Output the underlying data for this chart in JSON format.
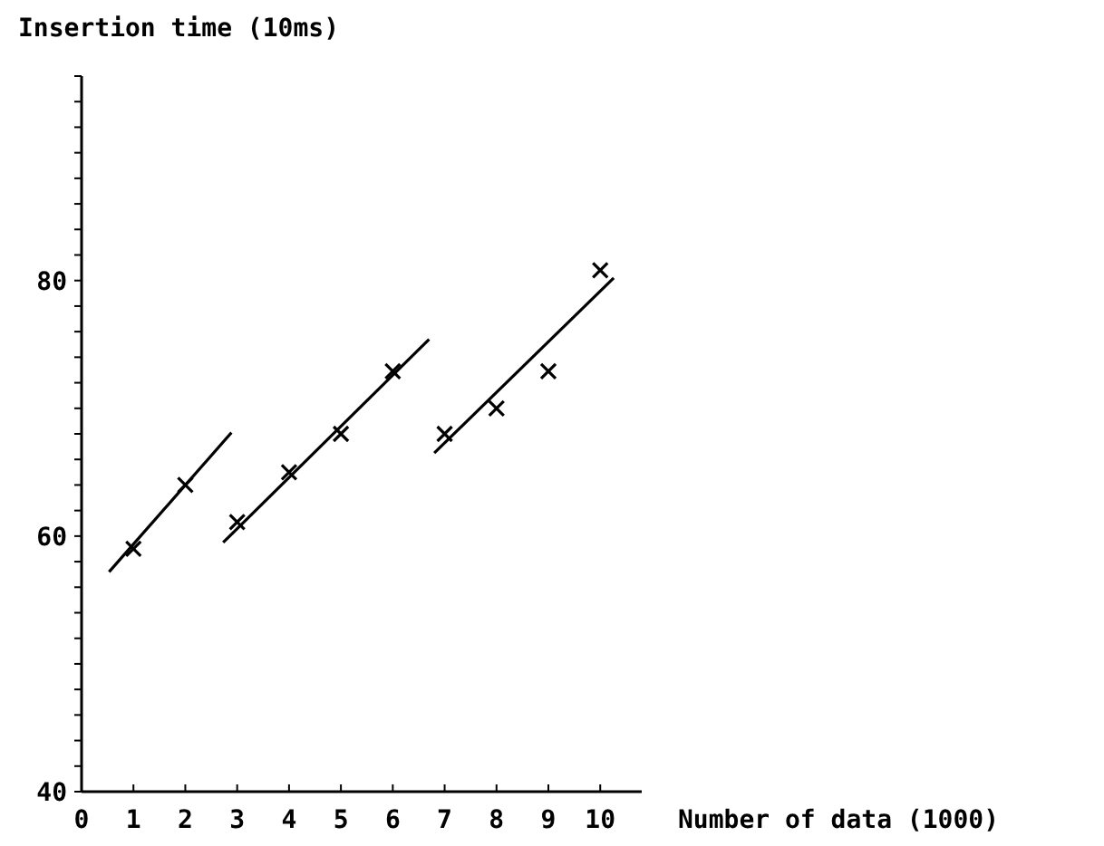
{
  "chart_data": {
    "type": "scatter",
    "ylabel": "Insertion time (10ms)",
    "xlabel": "Number of data (1000)",
    "xlim": [
      0,
      10.8
    ],
    "xticks": [
      0,
      1,
      2,
      3,
      4,
      5,
      6,
      7,
      8,
      9,
      10
    ],
    "ylim": [
      40,
      96
    ],
    "yticks": [
      40,
      {
        "value": 42,
        "label": null
      },
      {
        "value": 44,
        "label": null
      },
      {
        "value": 46,
        "label": null
      },
      {
        "value": 48,
        "label": null
      },
      {
        "value": 50,
        "label": null
      },
      {
        "value": 52,
        "label": null
      },
      {
        "value": 54,
        "label": null
      },
      {
        "value": 56,
        "label": null
      },
      {
        "value": 58,
        "label": null
      },
      60,
      {
        "value": 62,
        "label": null
      },
      {
        "value": 64,
        "label": null
      },
      {
        "value": 66,
        "label": null
      },
      {
        "value": 68,
        "label": null
      },
      {
        "value": 70,
        "label": null
      },
      {
        "value": 72,
        "label": null
      },
      {
        "value": 74,
        "label": null
      },
      {
        "value": 76,
        "label": null
      },
      {
        "value": 78,
        "label": null
      },
      80,
      {
        "value": 82,
        "label": null
      },
      {
        "value": 84,
        "label": null
      },
      {
        "value": 86,
        "label": null
      },
      {
        "value": 88,
        "label": null
      },
      {
        "value": 90,
        "label": null
      },
      {
        "value": 92,
        "label": null
      },
      {
        "value": 94,
        "label": null
      },
      {
        "value": 96,
        "label": null
      }
    ],
    "grid": false,
    "series": [
      {
        "marker": "cross",
        "color": "#000000",
        "x": [
          1,
          2,
          3,
          4,
          5,
          6,
          7,
          8,
          9,
          10
        ],
        "values": [
          59.0,
          64.0,
          61.1,
          65.0,
          68.0,
          72.9,
          68.0,
          70.0,
          72.9,
          80.8
        ]
      },
      {
        "type": "line",
        "color": "#000000",
        "marker": "none",
        "x": [
          0.53,
          2.89
        ],
        "values": [
          57.2,
          68.1
        ]
      },
      {
        "type": "line",
        "color": "#000000",
        "marker": "none",
        "x": [
          2.73,
          6.7
        ],
        "values": [
          59.5,
          75.4
        ]
      },
      {
        "type": "line",
        "color": "#000000",
        "marker": "none",
        "x": [
          6.8,
          10.26
        ],
        "values": [
          66.5,
          80.2
        ]
      }
    ]
  }
}
